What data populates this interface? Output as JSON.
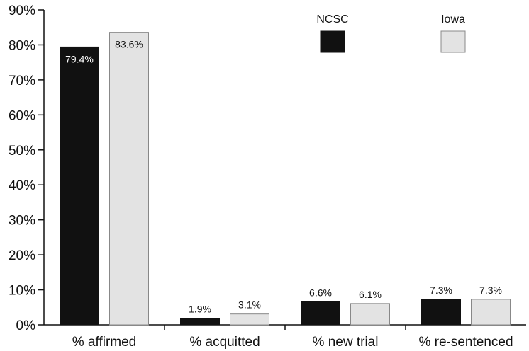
{
  "chart_data": {
    "type": "bar",
    "categories": [
      "% affirmed",
      "% acquitted",
      "% new trial",
      "% re-sentenced"
    ],
    "series": [
      {
        "name": "NCSC",
        "values": [
          79.4,
          1.9,
          6.6,
          7.3
        ],
        "labels": [
          "79.4%",
          "1.9%",
          "6.6%",
          "7.3%"
        ],
        "color": "#111111"
      },
      {
        "name": "Iowa",
        "values": [
          83.6,
          3.1,
          6.1,
          7.3
        ],
        "labels": [
          "83.6%",
          "3.1%",
          "6.1%",
          "7.3%"
        ],
        "color": "#e3e3e3"
      }
    ],
    "ylim": [
      0,
      90
    ],
    "yticks": [
      0,
      10,
      20,
      30,
      40,
      50,
      60,
      70,
      80,
      90
    ],
    "ytick_labels": [
      "0%",
      "10%",
      "20%",
      "30%",
      "40%",
      "50%",
      "60%",
      "70%",
      "80%",
      "90%"
    ],
    "title": "",
    "xlabel": "",
    "ylabel": "",
    "grid": false,
    "legend_position": "top-right"
  }
}
